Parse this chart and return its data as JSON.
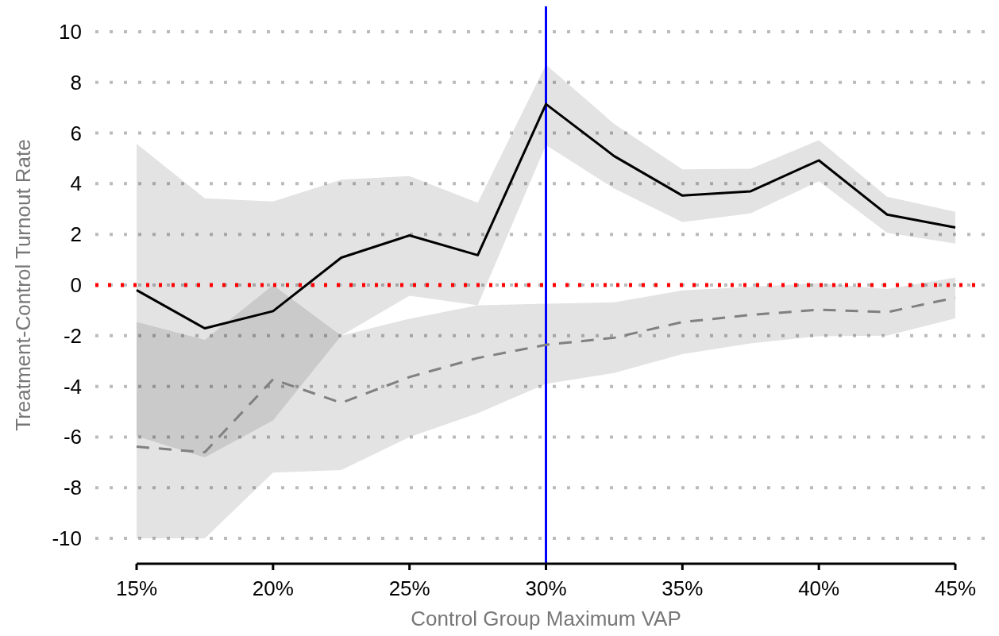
{
  "chart_data": {
    "type": "line",
    "xlabel": "Control Group Maximum VAP",
    "ylabel": "Treatment-Control Turnout Rate",
    "x": [
      15,
      17.5,
      20,
      22.5,
      25,
      27.5,
      30,
      32.5,
      35,
      37.5,
      40,
      42.5,
      45
    ],
    "series": [
      {
        "color": "#000000",
        "line_style": "solid",
        "values": [
          -0.2,
          -1.71,
          -1.03,
          1.08,
          1.96,
          1.18,
          7.14,
          5.09,
          3.53,
          3.7,
          4.92,
          2.78,
          2.27
        ],
        "lower": [
          -5.96,
          -6.8,
          -5.34,
          -2.0,
          -0.42,
          -0.8,
          5.52,
          3.81,
          2.48,
          2.83,
          4.1,
          2.06,
          1.64
        ],
        "upper": [
          5.58,
          3.42,
          3.3,
          4.16,
          4.3,
          3.25,
          8.7,
          6.36,
          4.57,
          4.59,
          5.72,
          3.49,
          2.89
        ]
      },
      {
        "color": "#808080",
        "line_style": "dashed",
        "values": [
          -6.38,
          -6.6,
          -3.72,
          -4.65,
          -3.63,
          -2.88,
          -2.36,
          -2.08,
          -1.46,
          -1.18,
          -0.97,
          -1.07,
          -0.5
        ],
        "lower": [
          -10,
          -10,
          -7.4,
          -7.3,
          -6.0,
          -5.06,
          -3.9,
          -3.47,
          -2.73,
          -2.3,
          -2.02,
          -2.0,
          -1.32
        ],
        "upper": [
          -1.46,
          -2.16,
          0,
          -2.0,
          -1.33,
          -0.8,
          -0.74,
          -0.68,
          -0.21,
          -0.07,
          0.08,
          -0.16,
          0.3
        ]
      }
    ],
    "xlim": [
      15,
      45
    ],
    "xticks": [
      {
        "value": 15,
        "label": "15%"
      },
      {
        "value": 20,
        "label": "20%"
      },
      {
        "value": 25,
        "label": "25%"
      },
      {
        "value": 30,
        "label": "30%"
      },
      {
        "value": 35,
        "label": "35%"
      },
      {
        "value": 40,
        "label": "40%"
      },
      {
        "value": 45,
        "label": "45%"
      }
    ],
    "ylim": [
      -11,
      11
    ],
    "yticks": [
      -10,
      -8,
      -6,
      -4,
      -2,
      0,
      2,
      4,
      6,
      8,
      10
    ],
    "grid": "y",
    "marker": "none",
    "ref_lines": [
      {
        "axis": "y",
        "value": 0,
        "color": "#ff0000",
        "line_style": "dotted"
      },
      {
        "axis": "x",
        "value": 30,
        "color": "#0000ff",
        "line_style": "solid"
      }
    ]
  }
}
